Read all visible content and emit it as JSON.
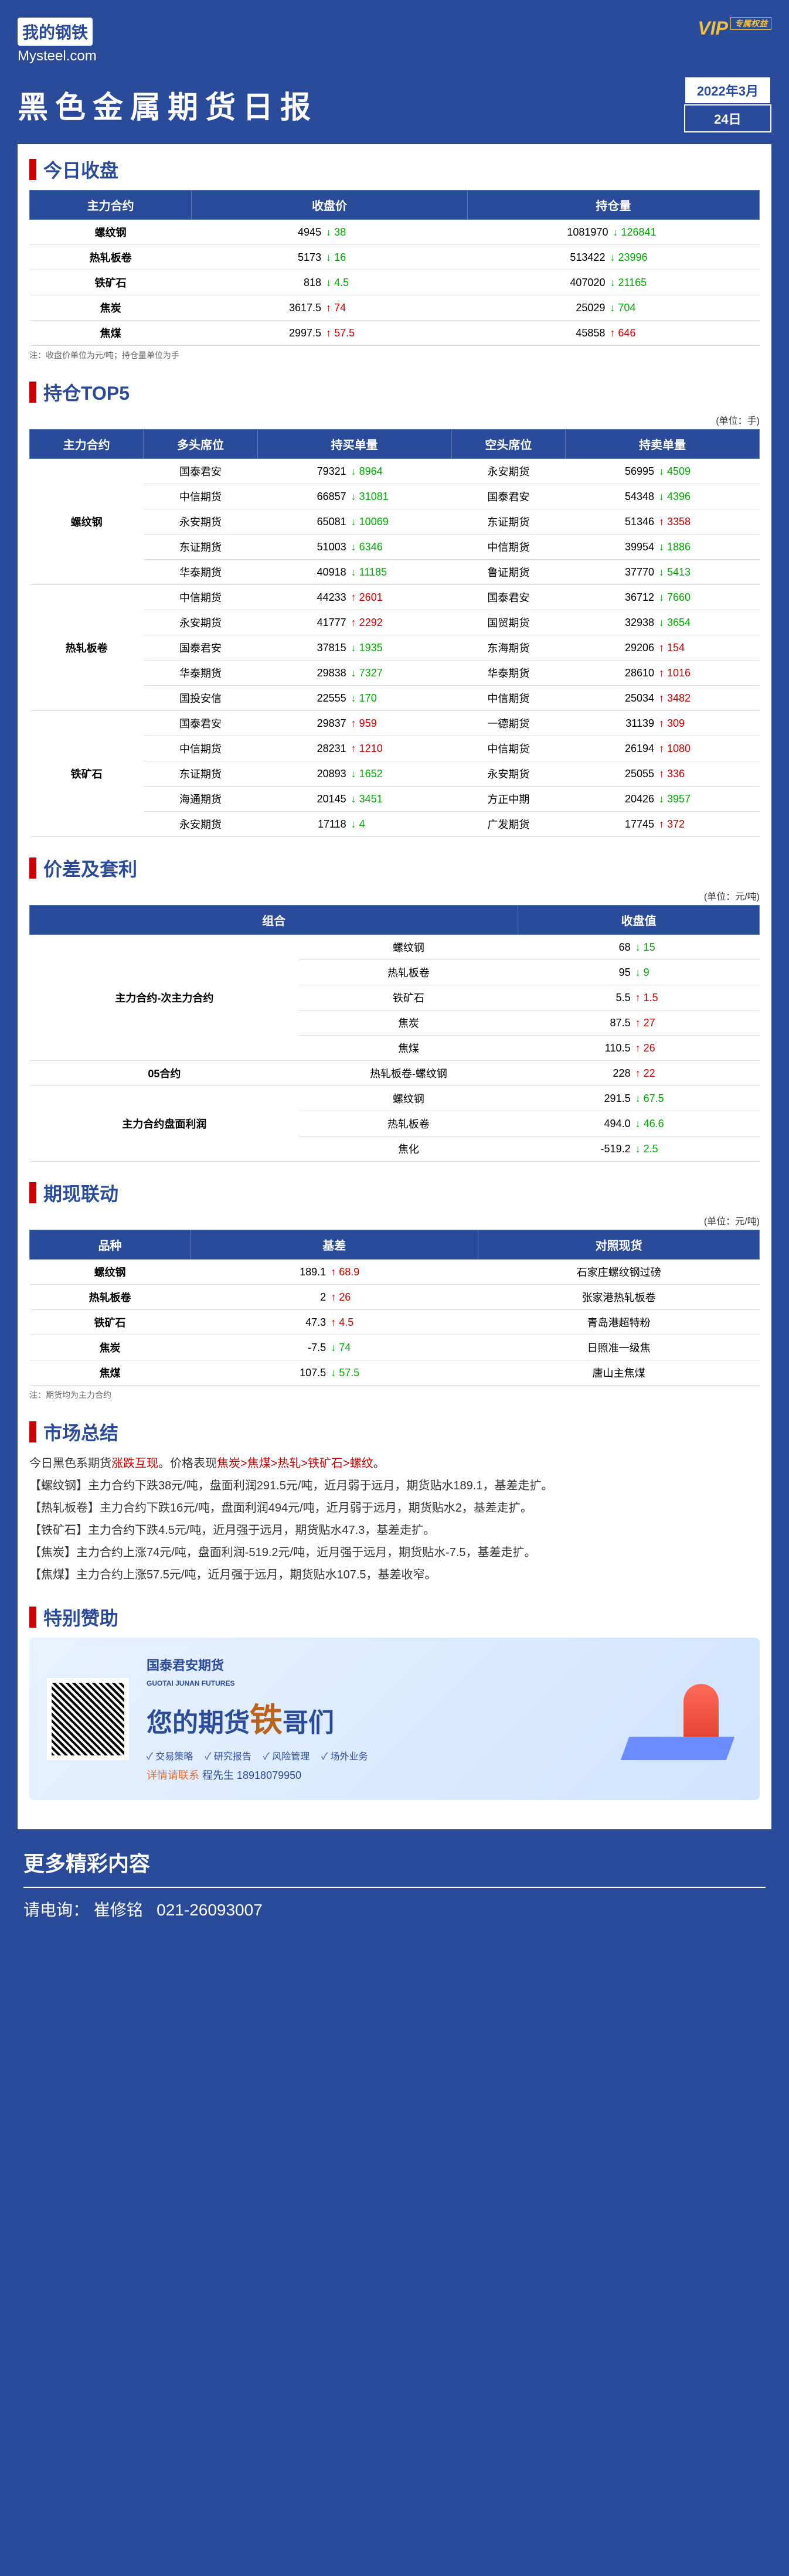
{
  "header": {
    "logo_cn": "我的钢铁",
    "logo_en": "Mysteel.com",
    "vip": "VIP",
    "vip_label": "专属权益"
  },
  "title": "黑色金属期货日报",
  "date": {
    "top": "2022年3月",
    "bottom": "24日"
  },
  "sections": {
    "closing": {
      "title": "今日收盘",
      "headers": [
        "主力合约",
        "收盘价",
        "持仓量"
      ],
      "rows": [
        {
          "name": "螺纹钢",
          "price": "4945",
          "price_chg": "38",
          "price_dir": "down",
          "oi": "1081970",
          "oi_chg": "126841",
          "oi_dir": "down"
        },
        {
          "name": "热轧板卷",
          "price": "5173",
          "price_chg": "16",
          "price_dir": "down",
          "oi": "513422",
          "oi_chg": "23996",
          "oi_dir": "down"
        },
        {
          "name": "铁矿石",
          "price": "818",
          "price_chg": "4.5",
          "price_dir": "down",
          "oi": "407020",
          "oi_chg": "21165",
          "oi_dir": "down"
        },
        {
          "name": "焦炭",
          "price": "3617.5",
          "price_chg": "74",
          "price_dir": "up",
          "oi": "25029",
          "oi_chg": "704",
          "oi_dir": "down"
        },
        {
          "name": "焦煤",
          "price": "2997.5",
          "price_chg": "57.5",
          "price_dir": "up",
          "oi": "45858",
          "oi_chg": "646",
          "oi_dir": "up"
        }
      ],
      "note": "注：收盘价单位为元/吨；持仓量单位为手"
    },
    "top5": {
      "title": "持仓TOP5",
      "unit": "(单位：手)",
      "headers": [
        "主力合约",
        "多头席位",
        "持买单量",
        "空头席位",
        "持卖单量"
      ],
      "groups": [
        {
          "name": "螺纹钢",
          "rows": [
            {
              "long_seat": "国泰君安",
              "long_vol": "79321",
              "long_chg": "8964",
              "long_dir": "down",
              "short_seat": "永安期货",
              "short_vol": "56995",
              "short_chg": "4509",
              "short_dir": "down"
            },
            {
              "long_seat": "中信期货",
              "long_vol": "66857",
              "long_chg": "31081",
              "long_dir": "down",
              "short_seat": "国泰君安",
              "short_vol": "54348",
              "short_chg": "4396",
              "short_dir": "down"
            },
            {
              "long_seat": "永安期货",
              "long_vol": "65081",
              "long_chg": "10069",
              "long_dir": "down",
              "short_seat": "东证期货",
              "short_vol": "51346",
              "short_chg": "3358",
              "short_dir": "up"
            },
            {
              "long_seat": "东证期货",
              "long_vol": "51003",
              "long_chg": "6346",
              "long_dir": "down",
              "short_seat": "中信期货",
              "short_vol": "39954",
              "short_chg": "1886",
              "short_dir": "down"
            },
            {
              "long_seat": "华泰期货",
              "long_vol": "40918",
              "long_chg": "11185",
              "long_dir": "down",
              "short_seat": "鲁证期货",
              "short_vol": "37770",
              "short_chg": "5413",
              "short_dir": "down"
            }
          ]
        },
        {
          "name": "热轧板卷",
          "rows": [
            {
              "long_seat": "中信期货",
              "long_vol": "44233",
              "long_chg": "2601",
              "long_dir": "up",
              "short_seat": "国泰君安",
              "short_vol": "36712",
              "short_chg": "7660",
              "short_dir": "down"
            },
            {
              "long_seat": "永安期货",
              "long_vol": "41777",
              "long_chg": "2292",
              "long_dir": "up",
              "short_seat": "国贸期货",
              "short_vol": "32938",
              "short_chg": "3654",
              "short_dir": "down"
            },
            {
              "long_seat": "国泰君安",
              "long_vol": "37815",
              "long_chg": "1935",
              "long_dir": "down",
              "short_seat": "东海期货",
              "short_vol": "29206",
              "short_chg": "154",
              "short_dir": "up"
            },
            {
              "long_seat": "华泰期货",
              "long_vol": "29838",
              "long_chg": "7327",
              "long_dir": "down",
              "short_seat": "华泰期货",
              "short_vol": "28610",
              "short_chg": "1016",
              "short_dir": "up"
            },
            {
              "long_seat": "国投安信",
              "long_vol": "22555",
              "long_chg": "170",
              "long_dir": "down",
              "short_seat": "中信期货",
              "short_vol": "25034",
              "short_chg": "3482",
              "short_dir": "up"
            }
          ]
        },
        {
          "name": "铁矿石",
          "rows": [
            {
              "long_seat": "国泰君安",
              "long_vol": "29837",
              "long_chg": "959",
              "long_dir": "up",
              "short_seat": "一德期货",
              "short_vol": "31139",
              "short_chg": "309",
              "short_dir": "up"
            },
            {
              "long_seat": "中信期货",
              "long_vol": "28231",
              "long_chg": "1210",
              "long_dir": "up",
              "short_seat": "中信期货",
              "short_vol": "26194",
              "short_chg": "1080",
              "short_dir": "up"
            },
            {
              "long_seat": "东证期货",
              "long_vol": "20893",
              "long_chg": "1652",
              "long_dir": "down",
              "short_seat": "永安期货",
              "short_vol": "25055",
              "short_chg": "336",
              "short_dir": "up"
            },
            {
              "long_seat": "海通期货",
              "long_vol": "20145",
              "long_chg": "3451",
              "long_dir": "down",
              "short_seat": "方正中期",
              "short_vol": "20426",
              "short_chg": "3957",
              "short_dir": "down"
            },
            {
              "long_seat": "永安期货",
              "long_vol": "17118",
              "long_chg": "4",
              "long_dir": "down",
              "short_seat": "广发期货",
              "short_vol": "17745",
              "short_chg": "372",
              "short_dir": "up"
            }
          ]
        }
      ]
    },
    "spread": {
      "title": "价差及套利",
      "unit": "(单位：元/吨)",
      "headers": [
        "组合",
        "收盘值"
      ],
      "groups": [
        {
          "name": "主力合约-次主力合约",
          "rows": [
            {
              "item": "螺纹钢",
              "val": "68",
              "chg": "15",
              "dir": "down"
            },
            {
              "item": "热轧板卷",
              "val": "95",
              "chg": "9",
              "dir": "down"
            },
            {
              "item": "铁矿石",
              "val": "5.5",
              "chg": "1.5",
              "dir": "up"
            },
            {
              "item": "焦炭",
              "val": "87.5",
              "chg": "27",
              "dir": "up"
            },
            {
              "item": "焦煤",
              "val": "110.5",
              "chg": "26",
              "dir": "up"
            }
          ]
        },
        {
          "name": "05合约",
          "rows": [
            {
              "item": "热轧板卷-螺纹钢",
              "val": "228",
              "chg": "22",
              "dir": "up"
            }
          ]
        },
        {
          "name": "主力合约盘面利润",
          "rows": [
            {
              "item": "螺纹钢",
              "val": "291.5",
              "chg": "67.5",
              "dir": "down"
            },
            {
              "item": "热轧板卷",
              "val": "494.0",
              "chg": "46.6",
              "dir": "down"
            },
            {
              "item": "焦化",
              "val": "-519.2",
              "chg": "2.5",
              "dir": "down"
            }
          ]
        }
      ]
    },
    "basis": {
      "title": "期现联动",
      "unit": "(单位：元/吨)",
      "headers": [
        "品种",
        "基差",
        "对照现货"
      ],
      "rows": [
        {
          "name": "螺纹钢",
          "val": "189.1",
          "chg": "68.9",
          "dir": "up",
          "spot": "石家庄螺纹钢过磅"
        },
        {
          "name": "热轧板卷",
          "val": "2",
          "chg": "26",
          "dir": "up",
          "spot": "张家港热轧板卷"
        },
        {
          "name": "铁矿石",
          "val": "47.3",
          "chg": "4.5",
          "dir": "up",
          "spot": "青岛港超特粉"
        },
        {
          "name": "焦炭",
          "val": "-7.5",
          "chg": "74",
          "dir": "down",
          "spot": "日照准一级焦"
        },
        {
          "name": "焦煤",
          "val": "107.5",
          "chg": "57.5",
          "dir": "down",
          "spot": "唐山主焦煤"
        }
      ],
      "note": "注：期货均为主力合约"
    },
    "summary": {
      "title": "市场总结",
      "intro_a": "今日黑色系期货",
      "intro_red1": "涨跌互现",
      "intro_b": "。价格表现",
      "intro_red2": "焦炭>焦煤>热轧>铁矿石>螺纹",
      "intro_c": "。",
      "paras": [
        "【螺纹钢】主力合约下跌38元/吨，盘面利润291.5元/吨，近月弱于远月，期货贴水189.1，基差走扩。",
        "【热轧板卷】主力合约下跌16元/吨，盘面利润494元/吨，近月弱于远月，期货贴水2，基差走扩。",
        "【铁矿石】主力合约下跌4.5元/吨，近月强于远月，期货贴水47.3，基差走扩。",
        "【焦炭】主力合约上涨74元/吨，盘面利润-519.2元/吨，近月强于远月，期货贴水-7.5，基差走扩。",
        "【焦煤】主力合约上涨57.5元/吨，近月强于远月，期货贴水107.5，基差收窄。"
      ]
    },
    "sponsor": {
      "title": "特别赞助",
      "logo": "国泰君安期货",
      "logo_en": "GUOTAI JUNAN FUTURES",
      "slogan_a": "您的期货",
      "slogan_big": "铁",
      "slogan_b": "哥们",
      "tags": [
        "✓ 交易策略",
        "✓ 研究报告",
        "✓ 风险管理",
        "✓ 场外业务"
      ],
      "contact_label": "详情请联系",
      "contact": "程先生 18918079950"
    }
  },
  "footer": {
    "title": "更多精彩内容",
    "contact_label": "请电询：",
    "contact_name": "崔修铭",
    "contact_phone": "021-26093007"
  }
}
